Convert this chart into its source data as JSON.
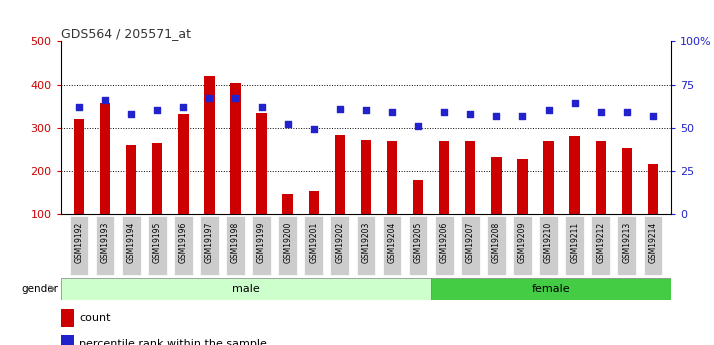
{
  "title": "GDS564 / 205571_at",
  "samples": [
    "GSM19192",
    "GSM19193",
    "GSM19194",
    "GSM19195",
    "GSM19196",
    "GSM19197",
    "GSM19198",
    "GSM19199",
    "GSM19200",
    "GSM19201",
    "GSM19202",
    "GSM19203",
    "GSM19204",
    "GSM19205",
    "GSM19206",
    "GSM19207",
    "GSM19208",
    "GSM19209",
    "GSM19210",
    "GSM19211",
    "GSM19212",
    "GSM19213",
    "GSM19214"
  ],
  "counts": [
    320,
    358,
    260,
    265,
    332,
    420,
    403,
    333,
    147,
    153,
    283,
    272,
    268,
    178,
    270,
    270,
    233,
    228,
    270,
    280,
    270,
    252,
    215
  ],
  "percentiles_pct": [
    62,
    66,
    58,
    60,
    62,
    67,
    67,
    62,
    52,
    49,
    61,
    60,
    59,
    51,
    59,
    58,
    57,
    57,
    60,
    64,
    59,
    59,
    57
  ],
  "male_count": 14,
  "female_count": 9,
  "ylim_left": [
    100,
    500
  ],
  "ylim_right": [
    0,
    100
  ],
  "yticks_left": [
    100,
    200,
    300,
    400,
    500
  ],
  "yticks_right": [
    0,
    25,
    50,
    75,
    100
  ],
  "grid_vals": [
    200,
    300,
    400
  ],
  "bar_color": "#cc0000",
  "dot_color": "#2222cc",
  "male_bg": "#ccffcc",
  "female_bg": "#44cc44",
  "tick_bg": "#cccccc",
  "plot_bg": "#ffffff",
  "left_axis_color": "#cc0000",
  "right_axis_color": "#2222cc",
  "title_color": "#333333",
  "bar_width": 0.4
}
